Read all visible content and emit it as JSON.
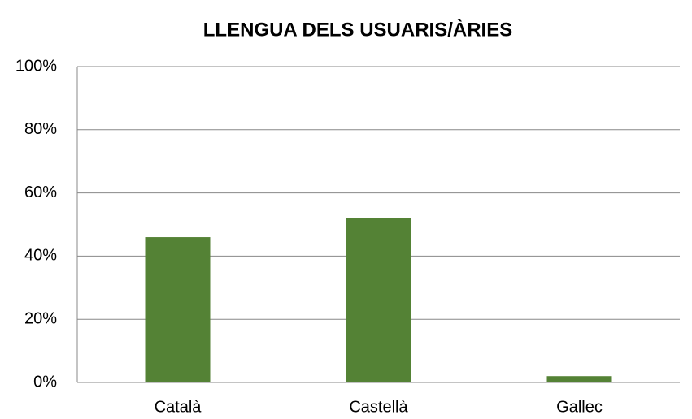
{
  "chart_data": {
    "type": "bar",
    "title": "LLENGUA DELS USUARIS/ÀRIES",
    "categories": [
      "Català",
      "Castellà",
      "Gallec"
    ],
    "values": [
      46,
      52,
      2
    ],
    "color": "#548235",
    "ylim": [
      0,
      100
    ],
    "yticks": [
      {
        "value": 0,
        "label": "0%"
      },
      {
        "value": 20,
        "label": "20%"
      },
      {
        "value": 40,
        "label": "40%"
      },
      {
        "value": 60,
        "label": "60%"
      },
      {
        "value": 80,
        "label": "80%"
      },
      {
        "value": 100,
        "label": "100%"
      }
    ],
    "grid": true
  }
}
